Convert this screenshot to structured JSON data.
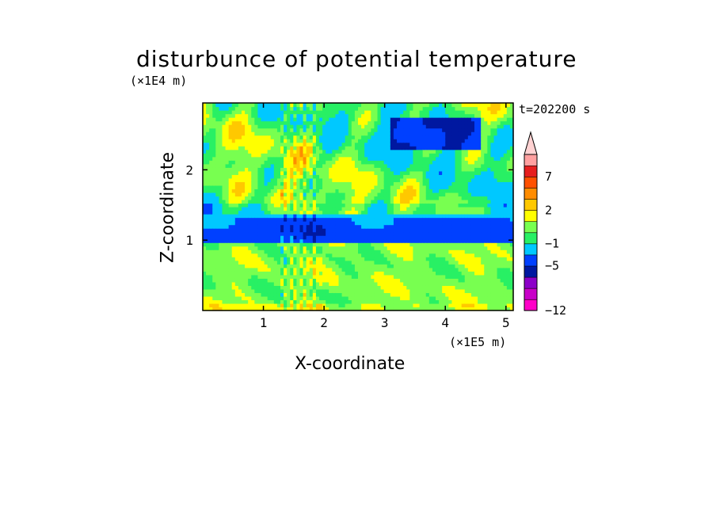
{
  "chart_data": {
    "type": "heatmap",
    "title": "disturbunce of potential temperature",
    "xlabel": "X-coordinate",
    "ylabel": "Z-coordinate",
    "x_unit": "(×1E5 m)",
    "y_unit": "(×1E4 m)",
    "time_label": "t=202200 s",
    "xlim": [
      0,
      5.12
    ],
    "ylim": [
      0,
      2.95
    ],
    "x_ticks": [
      1,
      2,
      3,
      4,
      5
    ],
    "y_ticks": [
      1,
      2
    ],
    "colorbar": {
      "levels": [
        -12,
        -11,
        -10,
        -8,
        -5,
        -3,
        -1,
        0,
        1,
        2,
        3,
        5,
        7,
        9,
        11
      ],
      "labeled_ticks": [
        -12,
        -5,
        -1,
        2,
        7
      ],
      "colors": [
        "#ff00c8",
        "#c800c8",
        "#8c00c8",
        "#0018a0",
        "#0040ff",
        "#00c8ff",
        "#28f064",
        "#78ff50",
        "#ffff00",
        "#ffc800",
        "#ff8c00",
        "#ff5000",
        "#e61e1e",
        "#ffa0a0",
        "#ffd2d2"
      ],
      "extend_max": true
    },
    "layers": [
      {
        "z_range": [
          0,
          0.95
        ],
        "pattern": "mostly green (0 to 1) with yellow patches (1 to 2) and cyan"
      },
      {
        "z_range": [
          0.75,
          1.38
        ],
        "pattern": "blue band (-5 to -3) with dark-blue spots"
      },
      {
        "z_range": [
          1.4,
          2.95
        ],
        "pattern": "alternating yellow/orange/red positive and green/cyan/blue negative cells; dark-blue patch near x=3.5-4.5, z=2.3-2.7"
      }
    ]
  }
}
